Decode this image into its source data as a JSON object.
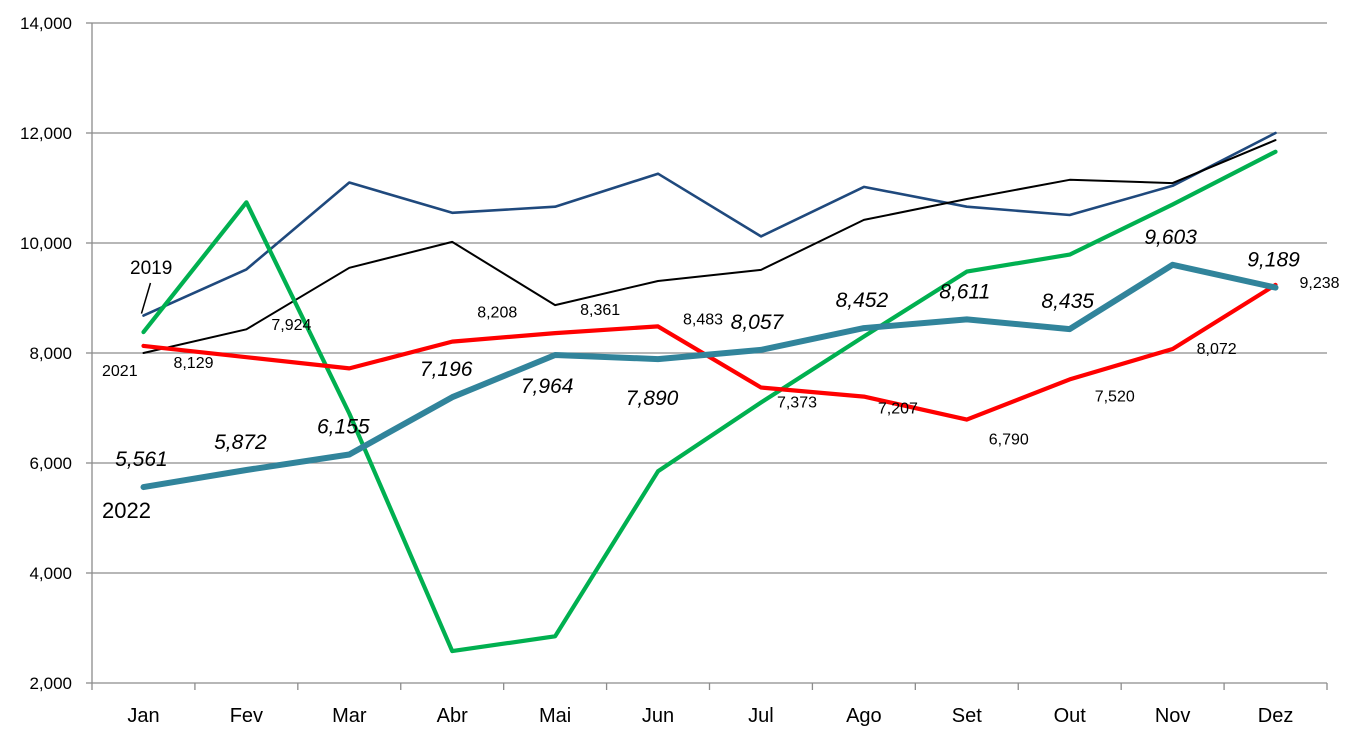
{
  "chart_data": {
    "type": "line",
    "categories": [
      "Jan",
      "Fev",
      "Mar",
      "Abr",
      "Mai",
      "Jun",
      "Jul",
      "Ago",
      "Set",
      "Out",
      "Nov",
      "Dez"
    ],
    "ylim": [
      2000,
      14000
    ],
    "yticks": [
      2000,
      4000,
      6000,
      8000,
      10000,
      12000,
      14000
    ],
    "ytick_labels": [
      "2,000",
      "4,000",
      "6,000",
      "8,000",
      "10,000",
      "12,000",
      "14,000"
    ],
    "grid": true,
    "colors": {
      "blue": "#1f497d",
      "black": "#000000",
      "green": "#00b050",
      "red": "#ff0000",
      "teal": "#31849b"
    },
    "series": [
      {
        "key": "blue",
        "name": "2019",
        "values": [
          8680,
          9520,
          11100,
          10550,
          10660,
          11260,
          10120,
          11020,
          10660,
          10510,
          11040,
          12000
        ]
      },
      {
        "key": "black",
        "name": "2021",
        "values": [
          8000,
          8430,
          9550,
          10020,
          8870,
          9310,
          9510,
          10420,
          10800,
          11150,
          11090,
          11870
        ]
      },
      {
        "key": "green",
        "values": [
          8380,
          10740,
          6900,
          2580,
          2850,
          5850,
          7100,
          8300,
          9480,
          9790,
          10700,
          11660
        ]
      },
      {
        "key": "red",
        "values": [
          8129,
          7924,
          7720,
          8208,
          8361,
          8483,
          7373,
          7207,
          6790,
          7520,
          8072,
          9238
        ]
      },
      {
        "key": "teal",
        "name": "2022",
        "values": [
          5561,
          5872,
          6155,
          7196,
          7964,
          7890,
          8057,
          8452,
          8611,
          8435,
          9603,
          9189
        ]
      }
    ],
    "series_tags": [
      "2019",
      "2021",
      "2022"
    ],
    "red_labels": [
      "8,129",
      "7,924",
      "",
      "8,208",
      "8,361",
      "8,483",
      "7,373",
      "7,207",
      "6,790",
      "7,520",
      "8,072",
      "9,238"
    ],
    "teal_labels": [
      "5,561",
      "5,872",
      "6,155",
      "7,196",
      "7,964",
      "7,890",
      "8,057",
      "8,452",
      "8,611",
      "8,435",
      "9,603",
      "9,189"
    ]
  }
}
